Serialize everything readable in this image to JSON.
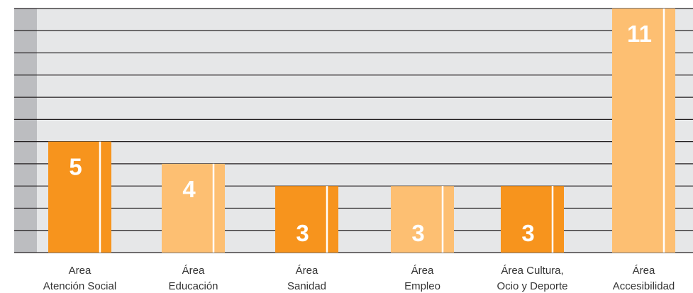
{
  "chart_data": {
    "type": "bar",
    "categories": [
      [
        "Area",
        "Atención Social"
      ],
      [
        "Área",
        "Educación"
      ],
      [
        "Área",
        "Sanidad"
      ],
      [
        "Área",
        "Empleo"
      ],
      [
        "Área Cultura,",
        "Ocio y Deporte"
      ],
      [
        "Área",
        "Accesibilidad"
      ]
    ],
    "values": [
      5,
      4,
      3,
      3,
      3,
      11
    ],
    "value_labels": [
      "5",
      "4",
      "3",
      "3",
      "3",
      "11"
    ],
    "bar_colors": [
      "#f7941d",
      "#fdbf72",
      "#f7941d",
      "#fdbf72",
      "#f7941d",
      "#fdbf72"
    ],
    "ylim": [
      0,
      11
    ],
    "grid": true,
    "colors": {
      "plot_background": "#e6e7e8",
      "axis_band": "#bcbdc0",
      "gridline": "#231f20",
      "bar_dark": "#f7941d",
      "bar_light": "#fdbf72",
      "value_text": "#ffffff",
      "label_text": "#333333"
    }
  }
}
